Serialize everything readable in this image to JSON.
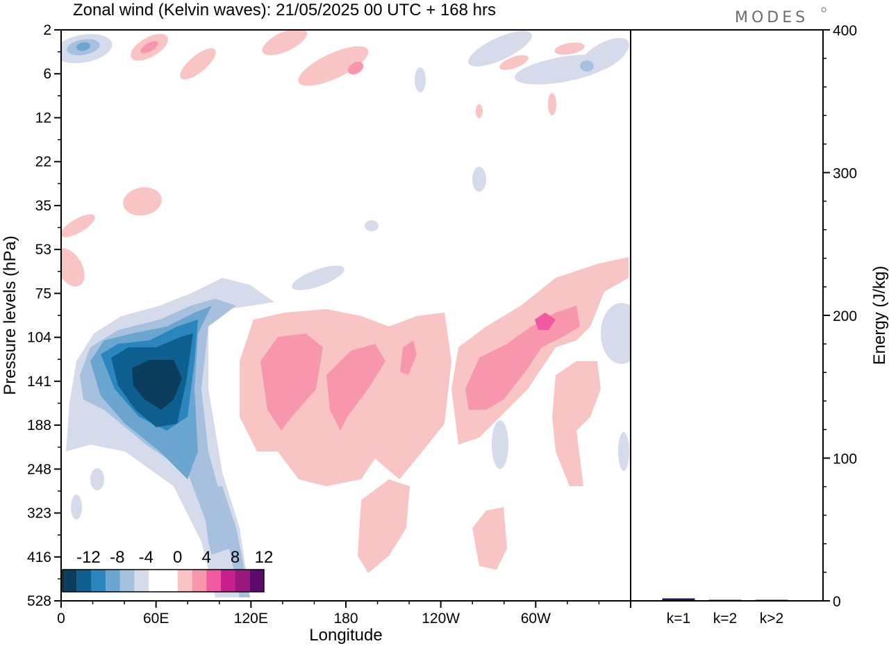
{
  "header": {
    "title": "Zonal wind (Kelvin waves):  21/05/2025  00 UTC  + 168 hrs",
    "brand": "MODES"
  },
  "chart_data": [
    {
      "type": "heatmap",
      "title": "Zonal wind (Kelvin waves):  21/05/2025  00 UTC  + 168 hrs",
      "xlabel": "Longitude",
      "ylabel": "Pressure levels (hPa)",
      "x_tick_labels": [
        "0",
        "60E",
        "120E",
        "180",
        "120W",
        "60W"
      ],
      "x_ticks_deg": [
        0,
        60,
        120,
        180,
        240,
        300
      ],
      "xlim": [
        0,
        360
      ],
      "y_tick_labels": [
        "2",
        "6",
        "12",
        "22",
        "35",
        "53",
        "75",
        "104",
        "141",
        "188",
        "248",
        "323",
        "416",
        "528"
      ],
      "y_axis_inverted": true,
      "colorbar": {
        "labels": [
          "-12",
          "-8",
          "-4",
          "0",
          "4",
          "8",
          "12"
        ],
        "colors": [
          "#0b3d5c",
          "#0d5f8f",
          "#2b86be",
          "#6aa6d0",
          "#a7c0de",
          "#d6dbeb",
          "#ffffff",
          "#ffffff",
          "#f9c4c4",
          "#f896ae",
          "#ef5aa0",
          "#c91f8c",
          "#97177d",
          "#5a0a68"
        ]
      },
      "features": [
        {
          "sign": "negative",
          "lon_center": 50,
          "level_center": "141",
          "peak_abs": 14
        },
        {
          "sign": "positive",
          "lon_center": 140,
          "level_center": "141",
          "peak_abs": 6
        },
        {
          "sign": "positive",
          "lon_center": 175,
          "level_center": "141",
          "peak_abs": 6
        },
        {
          "sign": "positive",
          "lon_center": 280,
          "level_center": "104",
          "peak_abs": 8
        }
      ]
    },
    {
      "type": "bar",
      "ylabel": "Energy (J/kg)",
      "ylim": [
        0,
        400
      ],
      "y_ticks": [
        0,
        100,
        200,
        300,
        400
      ],
      "categories": [
        "k=1",
        "k=2",
        "k>2"
      ],
      "values": [
        1.5,
        0.5,
        0.5
      ],
      "bar_color": "#1b1f7a"
    }
  ]
}
